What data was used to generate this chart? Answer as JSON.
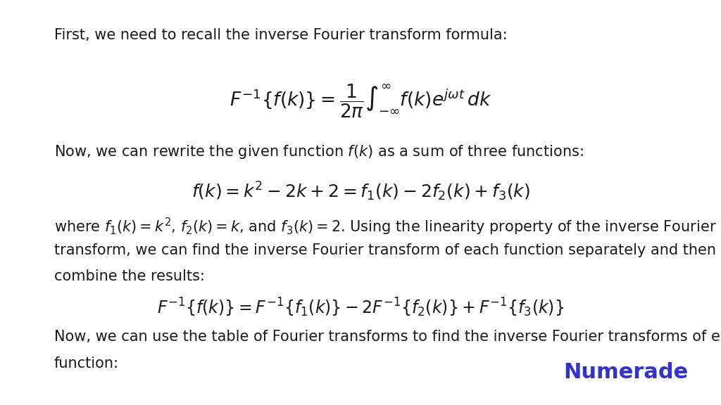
{
  "background_color": "#ffffff",
  "text_color": "#1a1a1a",
  "numerade_color": "#3333cc",
  "line1_text": "First, we need to recall the inverse Fourier transform formula:",
  "line2_text": "Now, we can rewrite the given function $f(k)$ as a sum of three functions:",
  "line3_part1": "where $f_1(k) = k^2$, $f_2(k) = k$, and $f_3(k) = 2$. Using the linearity property of the inverse Fourier",
  "line3_part2": "transform, we can find the inverse Fourier transform of each function separately and then",
  "line3_part3": "combine the results:",
  "line4_part1": "Now, we can use the table of Fourier transforms to find the inverse Fourier transforms of each",
  "line4_part2": "function:",
  "numerade_label": "Numerade",
  "font_size_text": 15,
  "font_size_eq": 17,
  "font_size_numerade": 22
}
